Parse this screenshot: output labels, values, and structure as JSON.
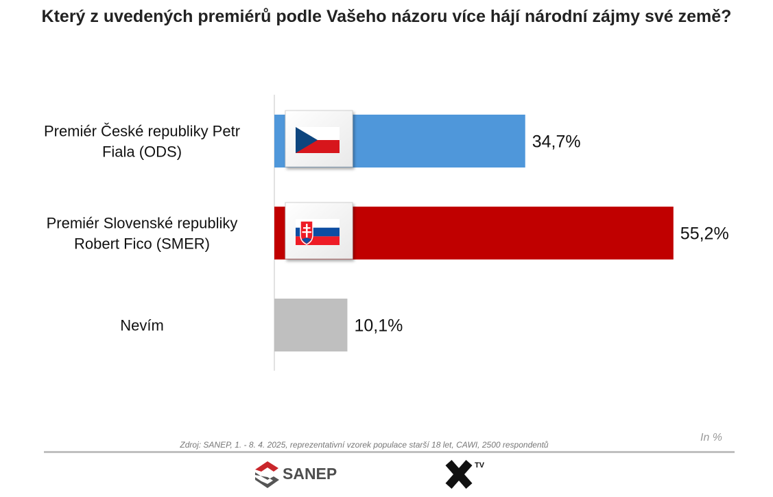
{
  "title": "Který z uvedených premiérů podle Vašeho názoru více hájí národní zájmy své země?",
  "chart_data": {
    "type": "bar",
    "orientation": "horizontal",
    "title": "Který z uvedených premiérů podle Vašeho názoru více hájí národní zájmy své země?",
    "categories": [
      [
        "Premiér České republiky Petr",
        "Fiala (ODS)"
      ],
      [
        "Premiér Slovenské republiky",
        "Robert Fico (SMER)"
      ],
      [
        "Nevím"
      ]
    ],
    "values": [
      34.7,
      55.2,
      10.1
    ],
    "value_labels": [
      "34,7%",
      "55,2%",
      "10,1%"
    ],
    "colors": [
      "#4f97da",
      "#c00000",
      "#bfbfbf"
    ],
    "flags": [
      "czech-flag",
      "slovak-flag",
      null
    ],
    "xlim": [
      0,
      100
    ],
    "grid": false,
    "legend": "none"
  },
  "unit_note": "In %",
  "source": "Zdroj: SANEP, 1. - 8. 4. 2025, reprezentativní vzorek populace starší 18 let, CAWI, 2500 respondentů",
  "logos": {
    "sanep": "SANEP",
    "xtv_superscript": "TV"
  }
}
